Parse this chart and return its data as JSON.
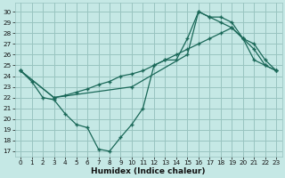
{
  "xlabel": "Humidex (Indice chaleur)",
  "xlim": [
    -0.5,
    23.5
  ],
  "ylim": [
    16.5,
    30.8
  ],
  "yticks": [
    17,
    18,
    19,
    20,
    21,
    22,
    23,
    24,
    25,
    26,
    27,
    28,
    29,
    30
  ],
  "xticks": [
    0,
    1,
    2,
    3,
    4,
    5,
    6,
    7,
    8,
    9,
    10,
    11,
    12,
    13,
    14,
    15,
    16,
    17,
    18,
    19,
    20,
    21,
    22,
    23
  ],
  "bg_color": "#c5e8e5",
  "grid_color": "#99c4c0",
  "line_color": "#1a6858",
  "line1_x": [
    0,
    1,
    2,
    3,
    4,
    5,
    6,
    7,
    8,
    9,
    10,
    11,
    12,
    13,
    14,
    15,
    16,
    17,
    18,
    19,
    20,
    21,
    22,
    23
  ],
  "line1_y": [
    24.5,
    23.5,
    22.0,
    21.8,
    20.5,
    19.5,
    19.2,
    17.2,
    17.0,
    18.3,
    19.5,
    21.0,
    25.0,
    25.5,
    25.5,
    27.5,
    30.0,
    29.5,
    29.0,
    28.5,
    27.5,
    27.0,
    25.5,
    24.5
  ],
  "line2_x": [
    0,
    3,
    10,
    15,
    16,
    17,
    18,
    19,
    20,
    21,
    22,
    23
  ],
  "line2_y": [
    24.5,
    22.0,
    23.0,
    26.0,
    30.0,
    29.5,
    29.5,
    29.0,
    27.5,
    25.5,
    25.0,
    24.5
  ],
  "line3_x": [
    0,
    3,
    4,
    5,
    6,
    7,
    8,
    9,
    10,
    11,
    12,
    13,
    14,
    15,
    16,
    17,
    18,
    19,
    20,
    21,
    22,
    23
  ],
  "line3_y": [
    24.5,
    22.0,
    22.2,
    22.5,
    22.8,
    23.2,
    23.5,
    24.0,
    24.2,
    24.5,
    25.0,
    25.5,
    26.0,
    26.5,
    27.0,
    27.5,
    28.0,
    28.5,
    27.5,
    26.5,
    25.0,
    24.5
  ]
}
